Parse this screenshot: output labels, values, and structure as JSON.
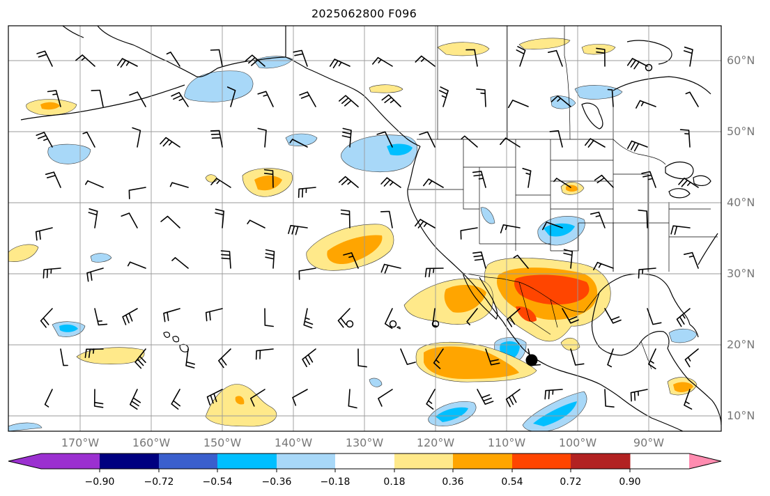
{
  "title": "2025062800 F096",
  "lat_labels": [
    "60°N",
    "50°N",
    "40°N",
    "30°N",
    "20°N",
    "10°N"
  ],
  "lon_labels": [
    "170°W",
    "160°W",
    "150°W",
    "140°W",
    "130°W",
    "120°W",
    "110°W",
    "100°W",
    "90°W"
  ],
  "colorbar": {
    "ticks": [
      "−0.90",
      "−0.72",
      "−0.54",
      "−0.36",
      "−0.18",
      "0.18",
      "0.36",
      "0.54",
      "0.72",
      "0.90"
    ],
    "colors": [
      "#9b30d0",
      "#000080",
      "#3a5fcd",
      "#00bfff",
      "#a8d8f8",
      "#ffffff",
      "#ffe98a",
      "#ffa500",
      "#ff4500",
      "#b22222",
      "#ff8cb0"
    ]
  },
  "anomaly_colors": {
    "neg_light": "#a8d8f8",
    "neg_mid": "#00bfff",
    "pos_light": "#ffe98a",
    "pos_mid": "#ffa500",
    "pos_strong": "#ff4500"
  }
}
